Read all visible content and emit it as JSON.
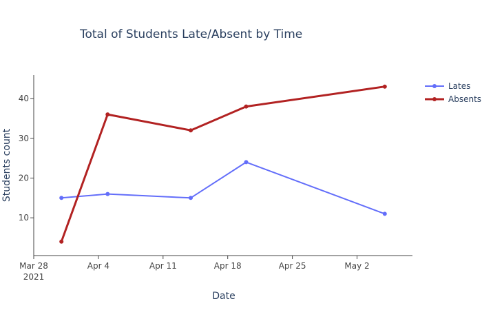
{
  "chart_data": {
    "type": "line",
    "title": "Total of Students Late/Absent by Time",
    "xlabel": "Date",
    "ylabel": "Students count",
    "x": [
      "2021-03-31",
      "2021-04-05",
      "2021-04-14",
      "2021-04-20",
      "2021-05-05"
    ],
    "x_ticks": [
      {
        "date": "2021-03-28",
        "label": "Mar 28",
        "sublabel": "2021"
      },
      {
        "date": "2021-04-04",
        "label": "Apr 4",
        "sublabel": ""
      },
      {
        "date": "2021-04-11",
        "label": "Apr 11",
        "sublabel": ""
      },
      {
        "date": "2021-04-18",
        "label": "Apr 18",
        "sublabel": ""
      },
      {
        "date": "2021-04-25",
        "label": "Apr 25",
        "sublabel": ""
      },
      {
        "date": "2021-05-02",
        "label": "May 2",
        "sublabel": ""
      }
    ],
    "xlim": [
      "2021-03-28",
      "2021-05-08"
    ],
    "ylim": [
      0.5,
      45.9
    ],
    "y_ticks": [
      10,
      20,
      30,
      40
    ],
    "grid": false,
    "legend_position": "top-right",
    "series": [
      {
        "name": "Lates",
        "color": "#636efa",
        "values": [
          15,
          16,
          15,
          24,
          11
        ]
      },
      {
        "name": "Absents",
        "color": "#b22222",
        "values": [
          4,
          36,
          32,
          38,
          43
        ]
      }
    ]
  }
}
